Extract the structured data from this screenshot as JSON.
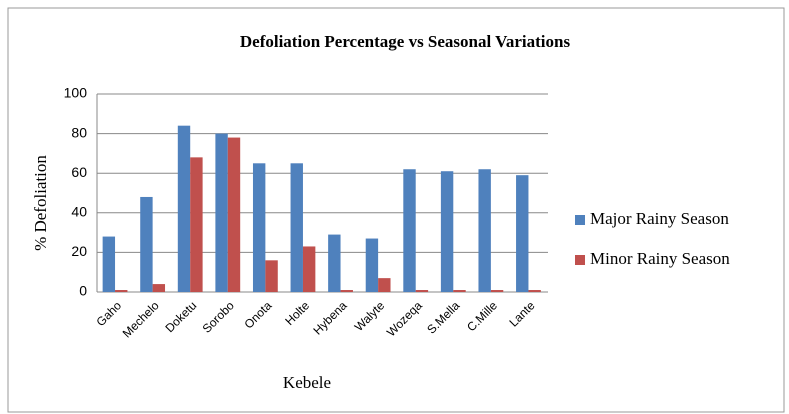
{
  "chart_data": {
    "type": "bar",
    "title": "Defoliation Percentage vs Seasonal Variations",
    "x_label": "Kebele",
    "y_label": "% Defoliation",
    "categories": [
      "Gaho",
      "Mechelo",
      "Doketu",
      "Sorobo",
      "Onota",
      "Holte",
      "Hybena",
      "Walyte",
      "Wozeqa",
      "S.Mella",
      "C.Mille",
      "Lante"
    ],
    "series": [
      {
        "name": "Major Rainy Season",
        "color": "#4f81bd",
        "values": [
          28,
          48,
          84,
          80,
          65,
          65,
          29,
          27,
          62,
          61,
          62,
          59
        ]
      },
      {
        "name": "Minor Rainy Season",
        "color": "#c0504d",
        "values": [
          1,
          4,
          68,
          78,
          16,
          23,
          1,
          7,
          1,
          1,
          1,
          1
        ]
      }
    ],
    "ylim": [
      0,
      100
    ],
    "yticks": [
      0,
      20,
      40,
      60,
      80,
      100
    ],
    "grid": true,
    "legend": "right"
  }
}
